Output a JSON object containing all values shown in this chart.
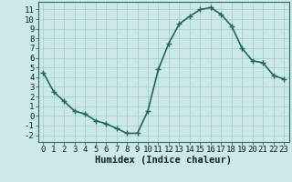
{
  "x": [
    0,
    1,
    2,
    3,
    4,
    5,
    6,
    7,
    8,
    9,
    10,
    11,
    12,
    13,
    14,
    15,
    16,
    17,
    18,
    19,
    20,
    21,
    22,
    23
  ],
  "y": [
    4.5,
    2.5,
    1.5,
    0.5,
    0.2,
    -0.5,
    -0.8,
    -1.3,
    -1.8,
    -1.8,
    0.5,
    4.8,
    7.5,
    9.5,
    10.3,
    11.0,
    11.2,
    10.5,
    9.3,
    7.0,
    5.7,
    5.5,
    4.2,
    3.8
  ],
  "line_color": "#1a6b5a",
  "marker": "+",
  "marker_color": "#1a6b5a",
  "marker_size": 4,
  "line_width": 1.2,
  "xlabel": "Humidex (Indice chaleur)",
  "background_color": "#cce8e8",
  "grid_color": "#aacccc",
  "spine_color": "#336666",
  "xlim": [
    -0.5,
    23.5
  ],
  "ylim": [
    -2.7,
    11.8
  ],
  "xticks": [
    0,
    1,
    2,
    3,
    4,
    5,
    6,
    7,
    8,
    9,
    10,
    11,
    12,
    13,
    14,
    15,
    16,
    17,
    18,
    19,
    20,
    21,
    22,
    23
  ],
  "yticks": [
    -2,
    -1,
    0,
    1,
    2,
    3,
    4,
    5,
    6,
    7,
    8,
    9,
    10,
    11
  ],
  "xlabel_fontsize": 7.5,
  "tick_fontsize": 6.5,
  "fig_bg_color": "#cce8e8"
}
